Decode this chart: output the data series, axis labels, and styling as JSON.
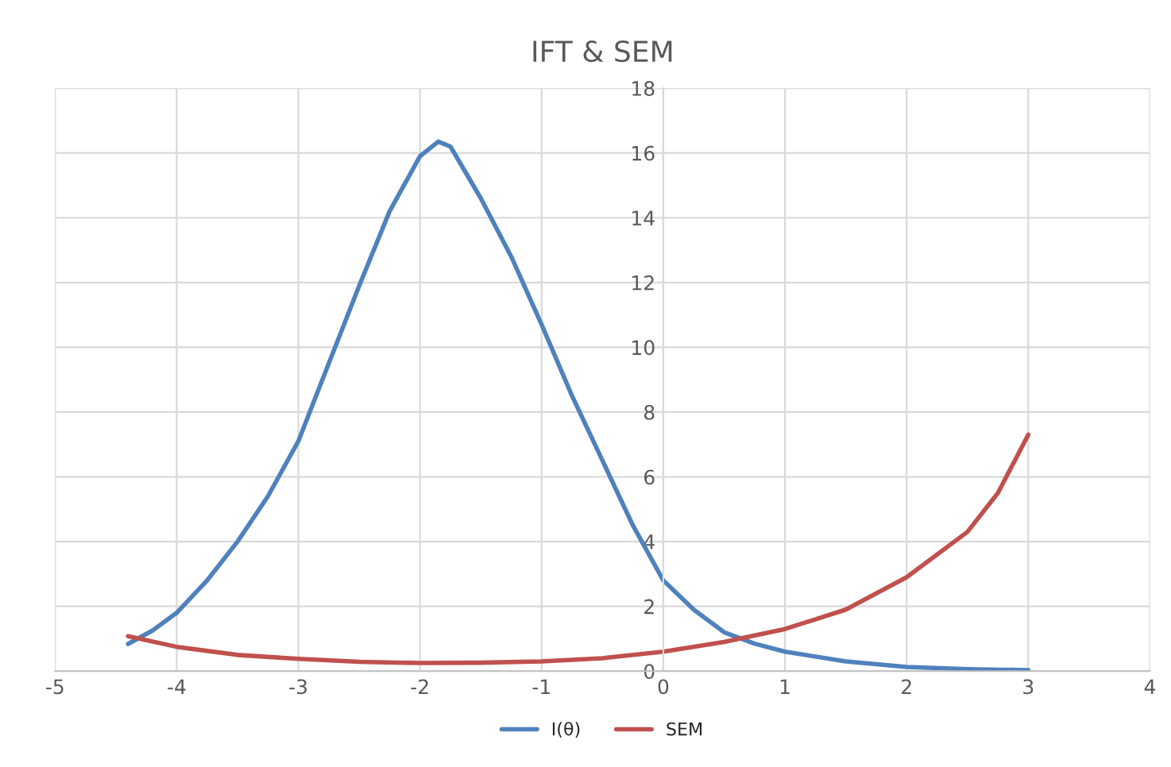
{
  "chart_data": {
    "type": "line",
    "title": "IFT & SEM",
    "xlim": [
      -5,
      4
    ],
    "xticks": [
      -5,
      -4,
      -3,
      -2,
      -1,
      0,
      1,
      2,
      3,
      4
    ],
    "ylim": [
      0,
      18
    ],
    "yticks": [
      0,
      2,
      4,
      6,
      8,
      10,
      12,
      14,
      16,
      18
    ],
    "grid": true,
    "legend": "bottom",
    "marker": "none",
    "line_style": "solid",
    "series": [
      {
        "name": "I(θ)",
        "color": "#4f81bd",
        "x": [
          -4.4,
          -4.2,
          -4,
          -3.75,
          -3.5,
          -3.25,
          -3,
          -2.75,
          -2.5,
          -2.25,
          -2,
          -1.85,
          -1.75,
          -1.5,
          -1.25,
          -1,
          -0.75,
          -0.5,
          -0.25,
          0,
          0.25,
          0.5,
          0.75,
          1,
          1.5,
          2,
          2.5,
          3
        ],
        "values": [
          0.84,
          1.25,
          1.8,
          2.8,
          4.0,
          5.4,
          7.1,
          9.5,
          11.9,
          14.2,
          15.9,
          16.35,
          16.2,
          14.6,
          12.8,
          10.7,
          8.5,
          6.5,
          4.5,
          2.8,
          1.9,
          1.2,
          0.85,
          0.6,
          0.3,
          0.13,
          0.06,
          0.03
        ]
      },
      {
        "name": "SEM",
        "color": "#c0504d",
        "x": [
          -4.4,
          -4,
          -3.5,
          -3,
          -2.5,
          -2,
          -1.5,
          -1,
          -0.5,
          0,
          0.5,
          1,
          1.5,
          2,
          2.5,
          2.75,
          3
        ],
        "values": [
          1.08,
          0.75,
          0.5,
          0.38,
          0.29,
          0.25,
          0.26,
          0.3,
          0.4,
          0.6,
          0.9,
          1.3,
          1.9,
          2.9,
          4.3,
          5.5,
          7.3
        ]
      }
    ]
  }
}
